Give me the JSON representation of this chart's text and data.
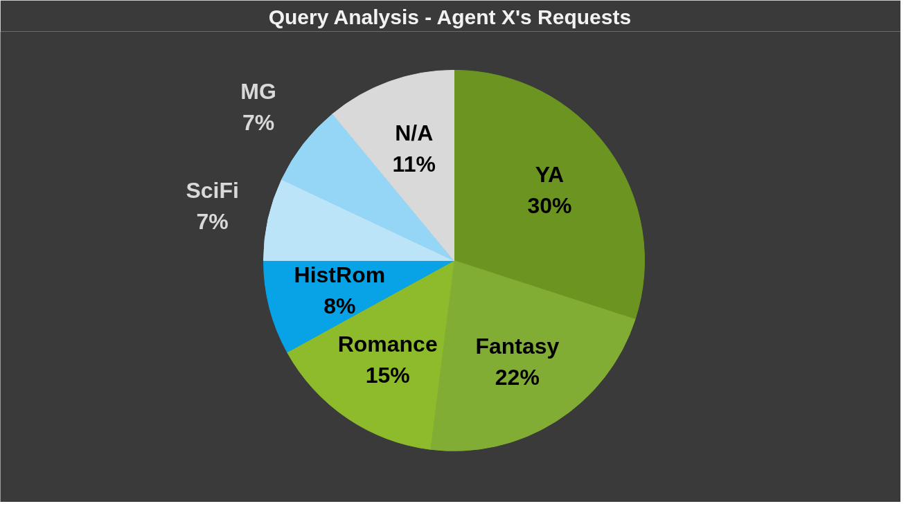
{
  "chart_data": {
    "type": "pie",
    "title": "Query Analysis - Agent X's Requests",
    "categories": [
      "YA",
      "Fantasy",
      "Romance",
      "HistRom",
      "SciFi",
      "MG",
      "N/A"
    ],
    "values": [
      30,
      22,
      15,
      8,
      7,
      7,
      11
    ],
    "value_labels": [
      "30%",
      "22%",
      "15%",
      "8%",
      "7%",
      "7%",
      "11%"
    ],
    "colors": [
      "#6b9520",
      "#82ad34",
      "#8dbb2c",
      "#08a2e6",
      "#bbe4f8",
      "#95d5f5",
      "#d9d9d9"
    ]
  }
}
